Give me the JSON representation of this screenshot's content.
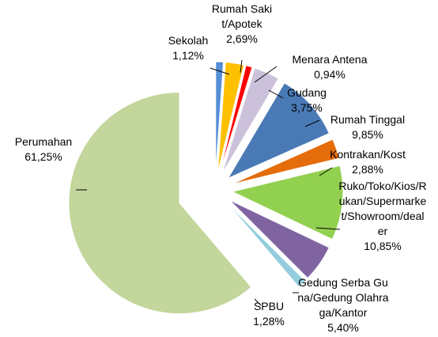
{
  "chart_data": {
    "type": "pie",
    "categories": [
      "Sekolah",
      "Rumah Sakit/Apotek",
      "Menara Antena",
      "Gudang",
      "Rumah Tinggal",
      "Kontrakan/Kost",
      "Ruko/Toko/Kios/Rukan/Supermarket/Showroom/dealer",
      "Gedung Serba Guna/Gedung Olahraga/Kantor",
      "SPBU",
      "Perumahan"
    ],
    "values": [
      1.12,
      2.69,
      0.94,
      3.75,
      9.85,
      2.88,
      10.85,
      5.4,
      1.28,
      61.25
    ],
    "value_labels": [
      "1,12%",
      "2,69%",
      "0,94%",
      "3,75%",
      "9,85%",
      "2,88%",
      "10,85%",
      "5,40%",
      "1,28%",
      "61,25%"
    ],
    "colors": [
      "#558ed5",
      "#ffc000",
      "#ff0000",
      "#ccc1da",
      "#4a7ab5",
      "#e46c0a",
      "#92d050",
      "#8064a2",
      "#93cddd",
      "#c3d69b"
    ]
  }
}
